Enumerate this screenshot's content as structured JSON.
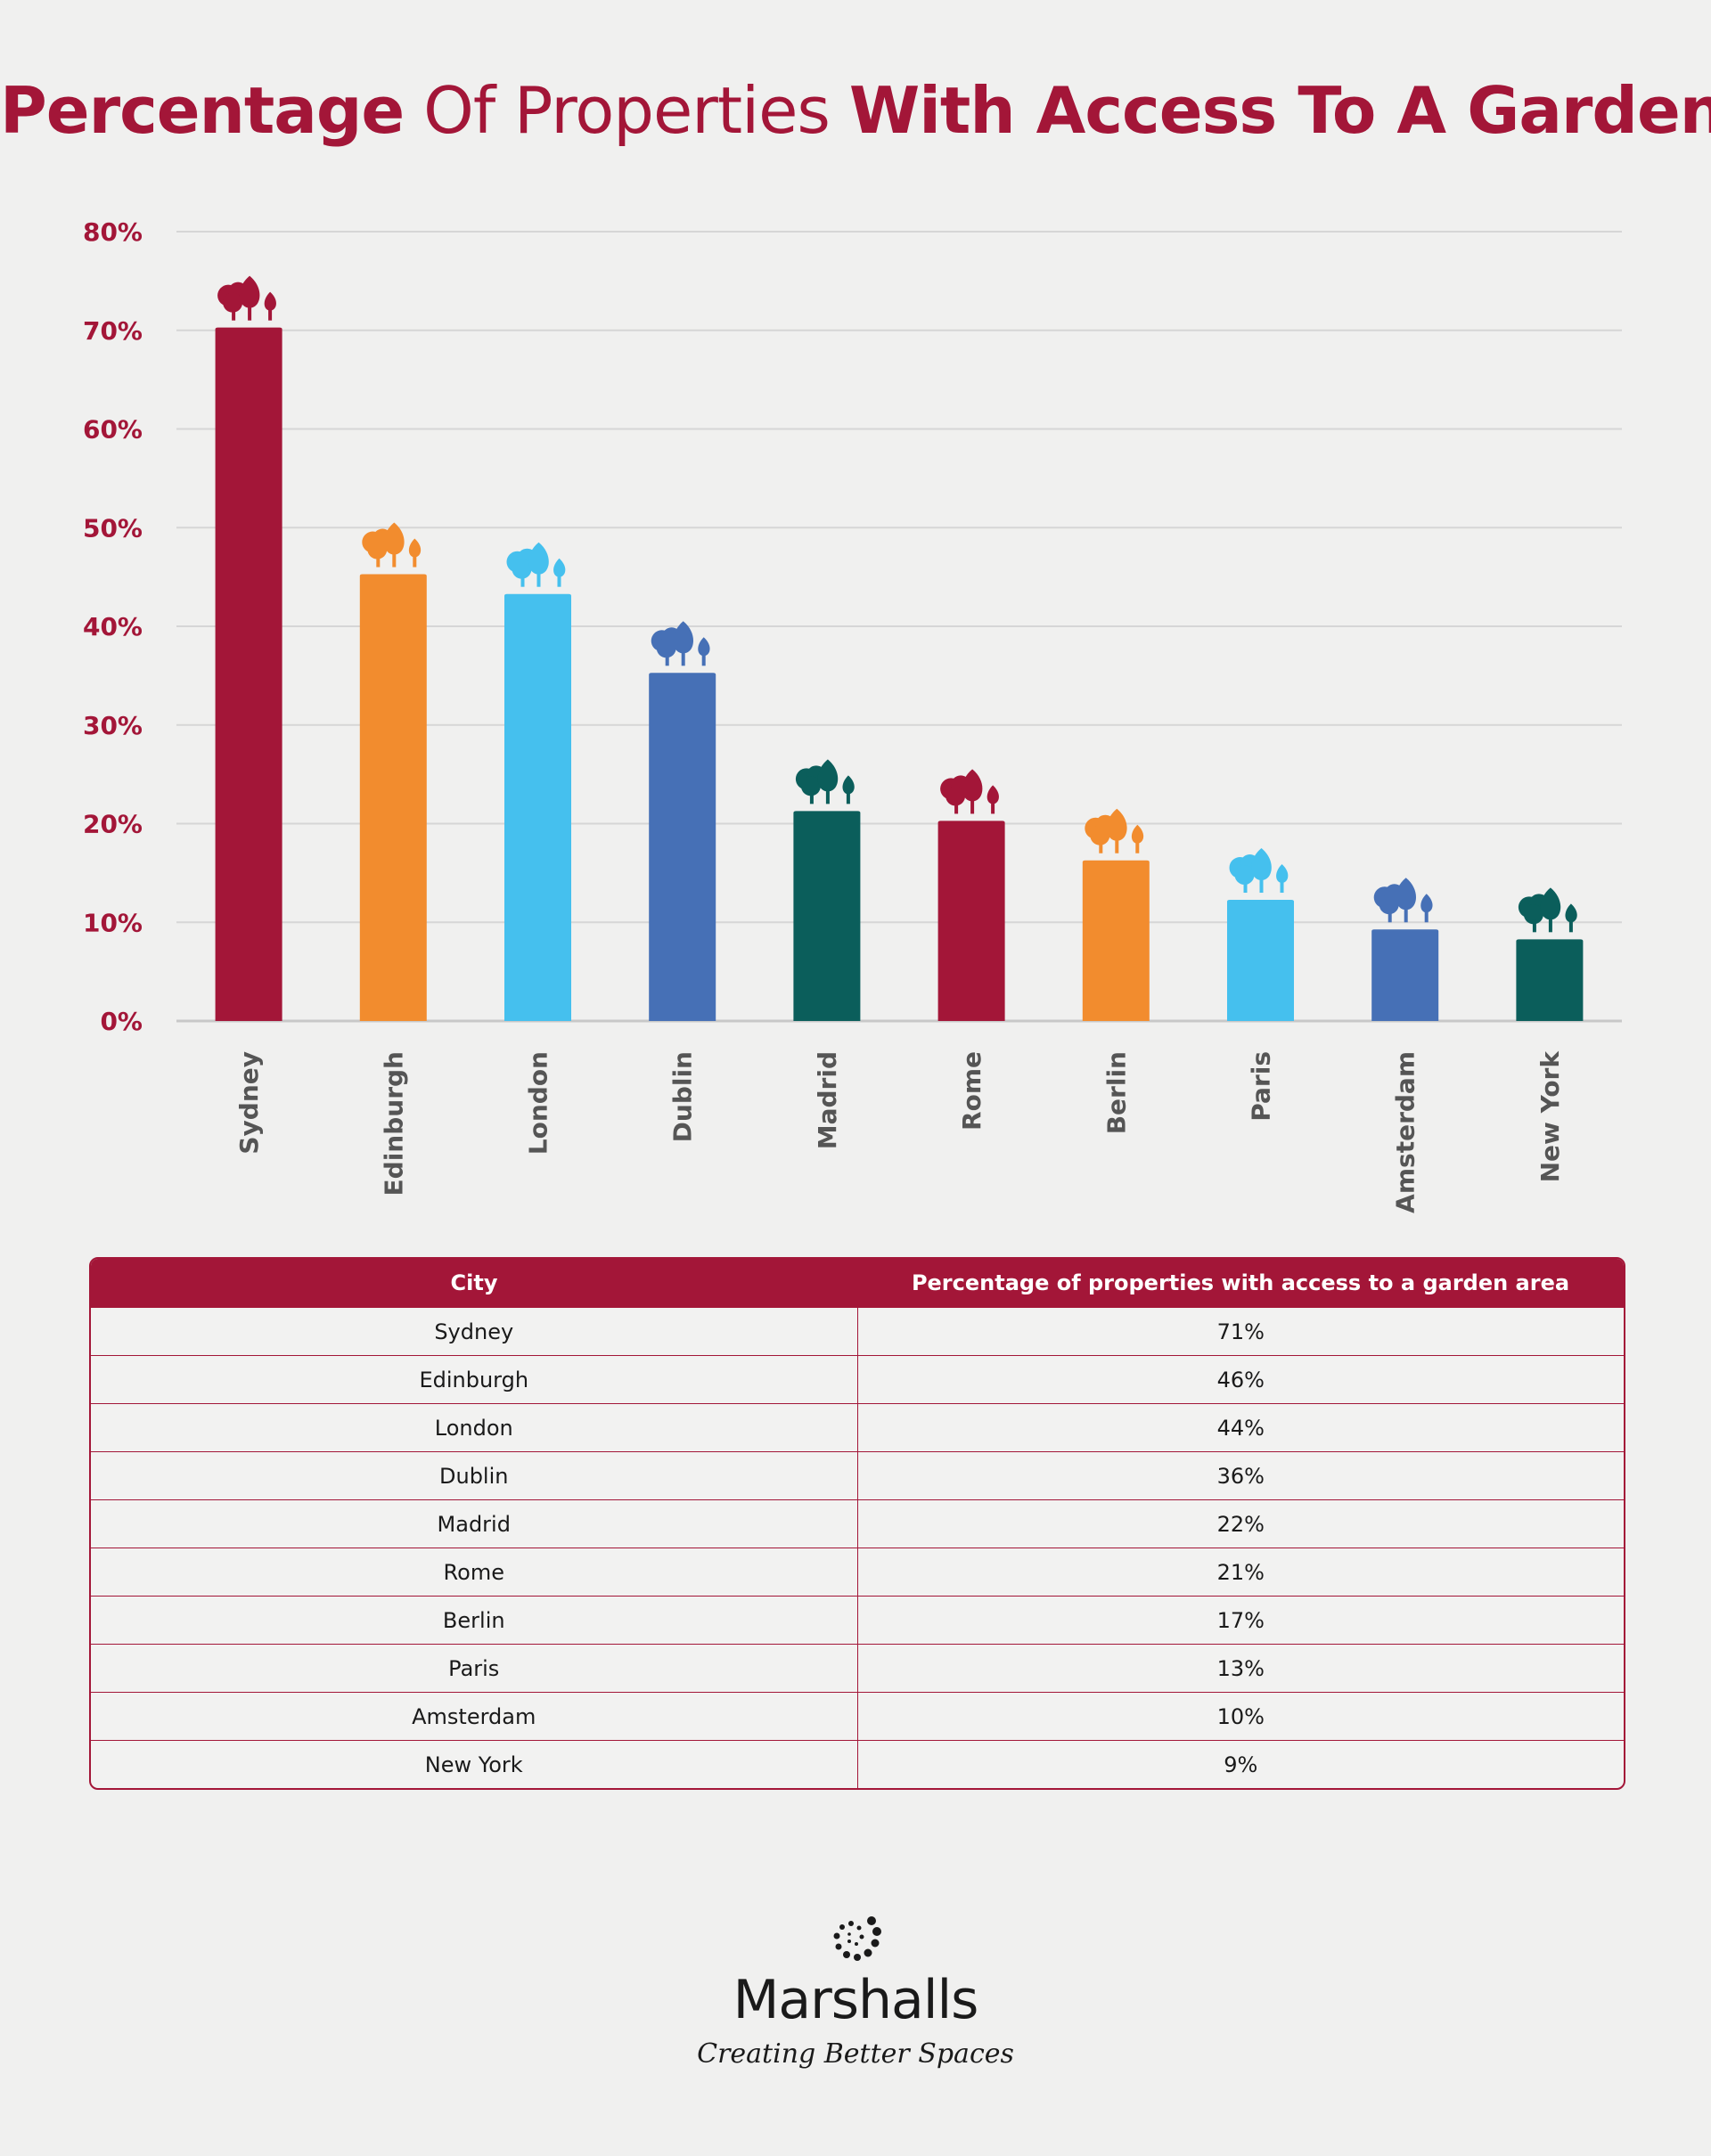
{
  "title": {
    "part1": "Percentage",
    "part2": " Of Properties ",
    "part3": "With Access To A Garden"
  },
  "colors": {
    "crimson": "#a31638",
    "orange": "#f28c2e",
    "sky": "#45c0ee",
    "blue": "#4670b6",
    "teal": "#0b5e5b"
  },
  "chart_data": {
    "type": "bar",
    "categories": [
      "Sydney",
      "Edinburgh",
      "London",
      "Dublin",
      "Madrid",
      "Rome",
      "Berlin",
      "Paris",
      "Amsterdam",
      "New York"
    ],
    "values": [
      71,
      46,
      44,
      36,
      22,
      21,
      17,
      13,
      10,
      9
    ],
    "bar_colors": [
      "#a31638",
      "#f28c2e",
      "#45c0ee",
      "#4670b6",
      "#0b5e5b",
      "#a31638",
      "#f28c2e",
      "#45c0ee",
      "#4670b6",
      "#0b5e5b"
    ],
    "ylim": [
      0,
      80
    ],
    "yticks": [
      "0%",
      "10%",
      "20%",
      "30%",
      "40%",
      "50%",
      "60%",
      "70%",
      "80%"
    ],
    "grid": true,
    "bar_icon": "tree-icon"
  },
  "table": {
    "headers": [
      "City",
      "Percentage of properties with access to a garden area"
    ],
    "rows": [
      [
        "Sydney",
        "71%"
      ],
      [
        "Edinburgh",
        "46%"
      ],
      [
        "London",
        "44%"
      ],
      [
        "Dublin",
        "36%"
      ],
      [
        "Madrid",
        "22%"
      ],
      [
        "Rome",
        "21%"
      ],
      [
        "Berlin",
        "17%"
      ],
      [
        "Paris",
        "13%"
      ],
      [
        "Amsterdam",
        "10%"
      ],
      [
        "New York",
        "9%"
      ]
    ]
  },
  "logo": {
    "brand": "Marshalls",
    "tagline": "Creating Better Spaces",
    "icon": "dotted-spiral-icon"
  }
}
